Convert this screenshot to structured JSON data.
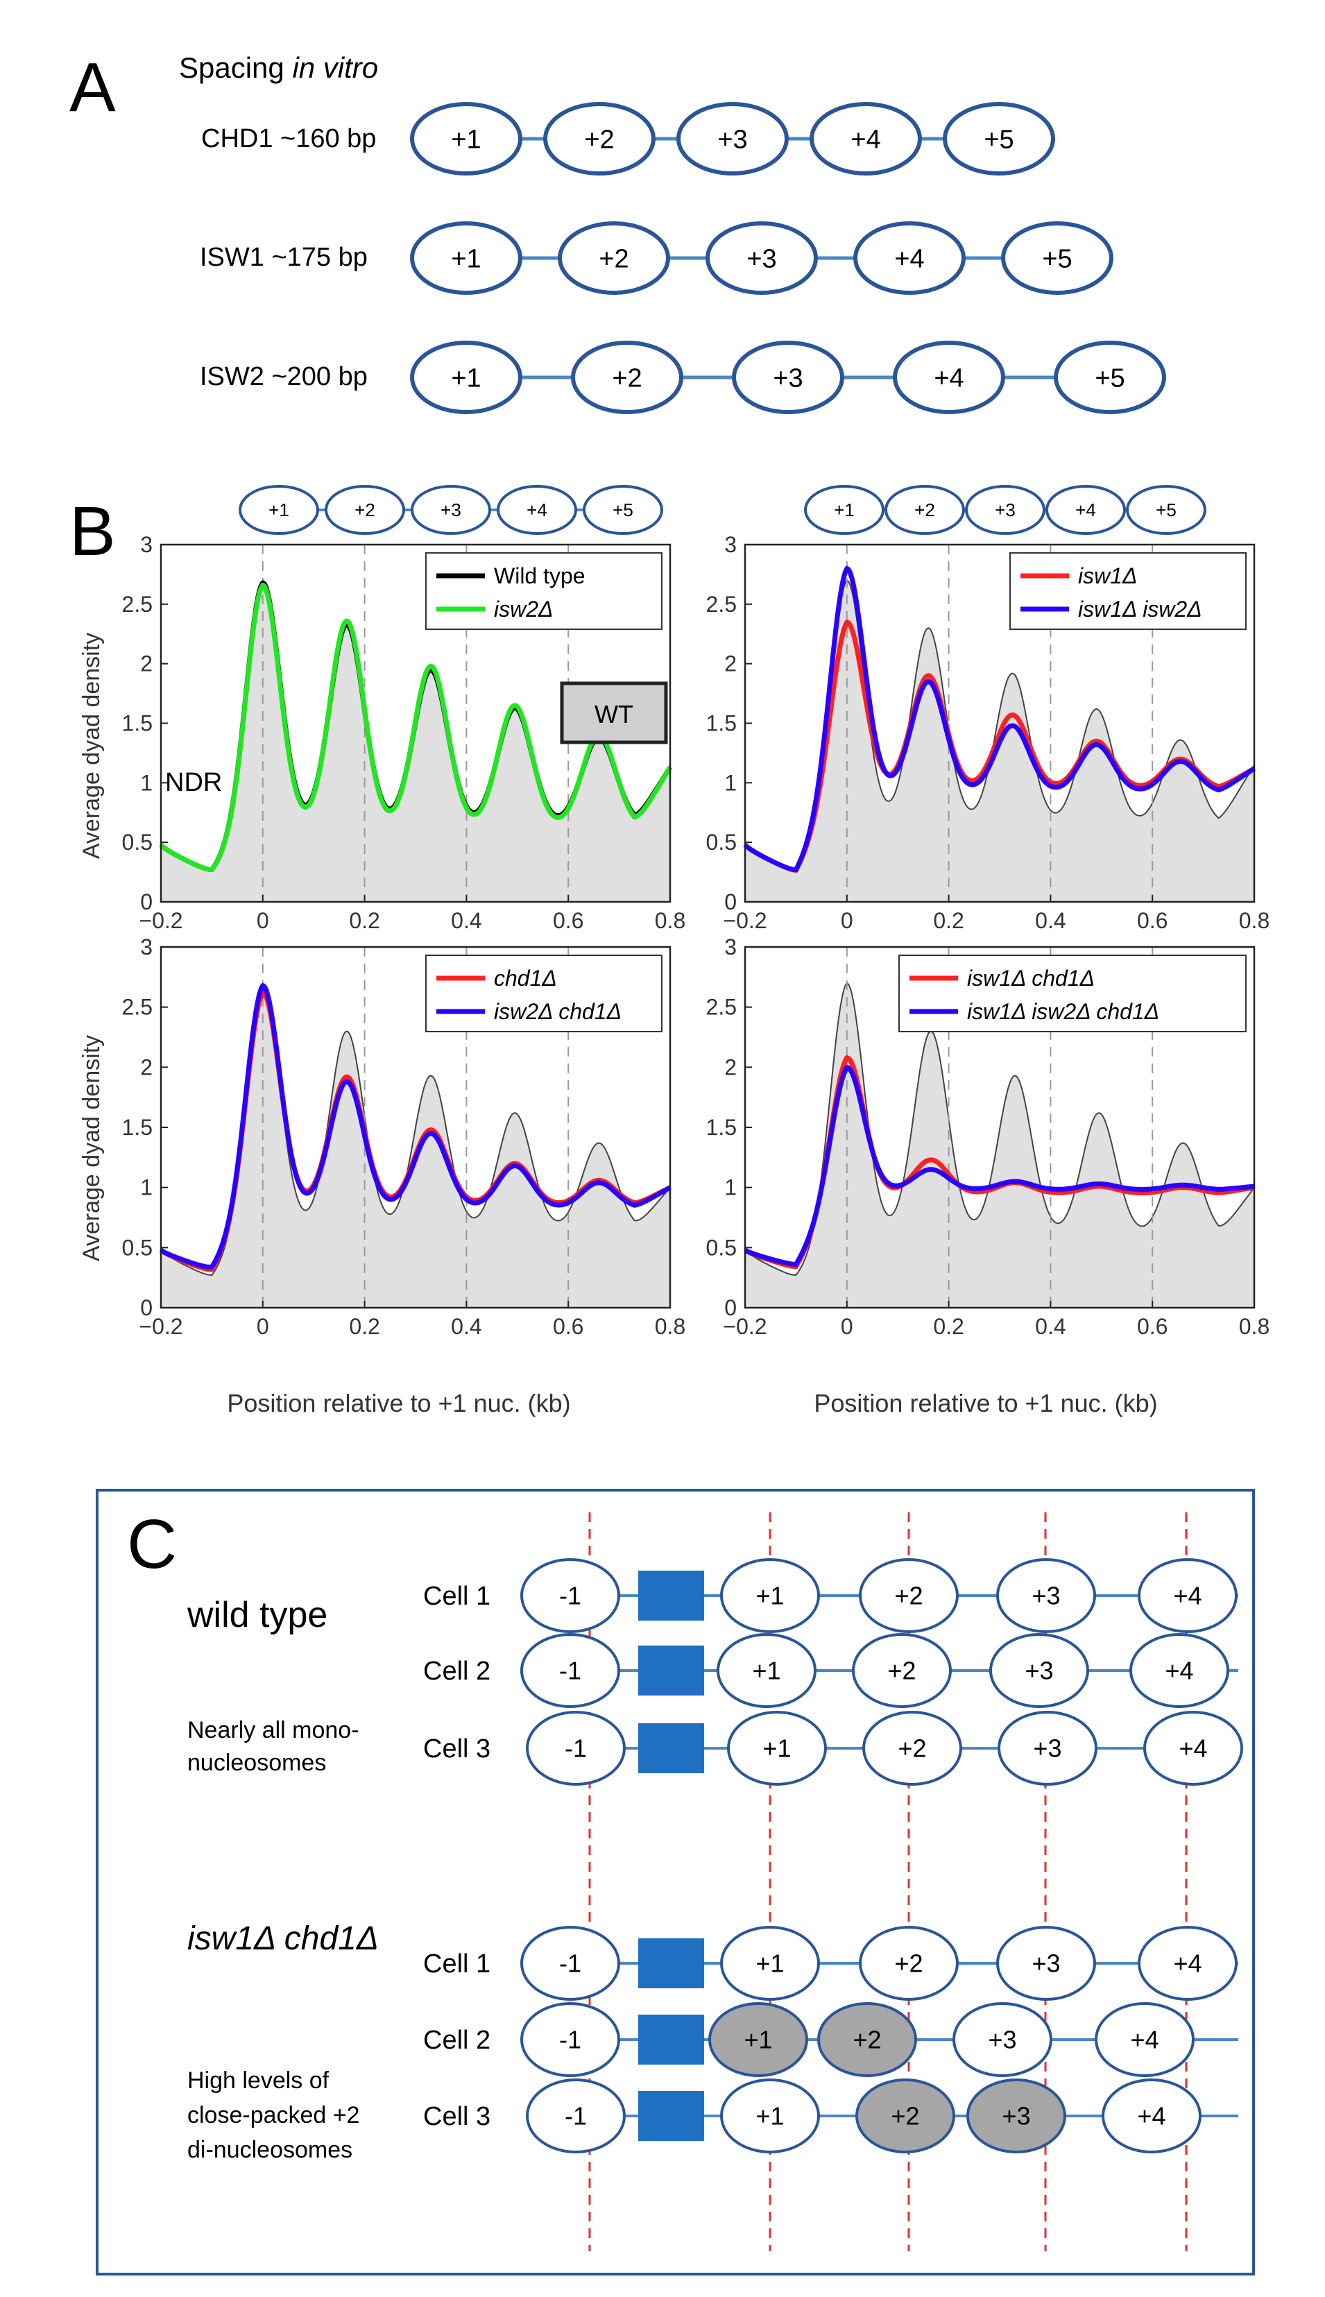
{
  "panels": {
    "A": {
      "letter": "A",
      "heading_prefix": "Spacing ",
      "heading_italic": "in vitro",
      "rows": [
        {
          "label": "CHD1 ~160 bp",
          "nucs": [
            "+1",
            "+2",
            "+3",
            "+4",
            "+5"
          ]
        },
        {
          "label": "ISW1 ~175 bp",
          "nucs": [
            "+1",
            "+2",
            "+3",
            "+4",
            "+5"
          ]
        },
        {
          "label": "ISW2 ~200 bp",
          "nucs": [
            "+1",
            "+2",
            "+3",
            "+4",
            "+5"
          ]
        }
      ]
    },
    "B": {
      "letter": "B",
      "header_nucs": [
        "+1",
        "+2",
        "+3",
        "+4",
        "+5"
      ],
      "ylabel": "Average dyad density",
      "xlabel": "Position relative to +1 nuc. (kb)",
      "ndr_label": "NDR",
      "wt_label": "WT",
      "xticks": [
        "−0.2",
        "0",
        "0.2",
        "0.4",
        "0.6",
        "0.8"
      ],
      "yticks": [
        "0",
        "0.5",
        "1",
        "1.5",
        "2",
        "2.5",
        "3"
      ],
      "plots": [
        {
          "legend": [
            "Wild type",
            "isw2Δ"
          ]
        },
        {
          "legend": [
            "isw1Δ",
            "isw1Δ isw2Δ"
          ]
        },
        {
          "legend": [
            "chd1Δ",
            "isw2Δ chd1Δ"
          ]
        },
        {
          "legend": [
            "isw1Δ chd1Δ",
            "isw1Δ isw2Δ chd1Δ"
          ]
        }
      ]
    },
    "C": {
      "letter": "C",
      "wt_title": "wild type",
      "wt_note": [
        "Nearly all mono-",
        "nucleosomes"
      ],
      "mut_title": "isw1Δ chd1Δ",
      "mut_note": [
        "High levels of",
        "close-packed +2",
        "di-nucleosomes"
      ],
      "cell_labels": [
        "Cell 1",
        "Cell 2",
        "Cell 3"
      ],
      "nuc_labels": [
        "-1",
        "+1",
        "+2",
        "+3",
        "+4"
      ]
    }
  },
  "colors": {
    "nucleosome_stroke": "#2a5599",
    "linker": "#4a86c8",
    "ndr_box": "#1f6fc5",
    "close_packed_fill": "#a6a6a6",
    "wild_type": "#000000",
    "isw2": "#22e622",
    "red_series": "#ff2020",
    "blue_series": "#2a00ff",
    "wt_fill": "#e0e0e0",
    "guide_line": "#e53030"
  },
  "chart_data": [
    {
      "type": "line",
      "title": "",
      "xlabel": "Position relative to +1 nuc. (kb)",
      "ylabel": "Average dyad density",
      "xlim": [
        -0.2,
        0.8
      ],
      "ylim": [
        0,
        3
      ],
      "peak_positions_kb": [
        0,
        0.165,
        0.33,
        0.495,
        0.66
      ],
      "series": [
        {
          "name": "WT (grey fill)",
          "baseline": 0.25,
          "plateau": 0.65,
          "trough_end": 0.65,
          "peaks": [
            2.7,
            2.35,
            1.97,
            1.65,
            1.4
          ],
          "end_value": 1.15
        },
        {
          "name": "Wild type",
          "baseline": 0.25,
          "plateau": 0.65,
          "trough_end": 0.65,
          "peaks": [
            2.68,
            2.33,
            1.95,
            1.63,
            1.38
          ],
          "end_value": 1.13
        },
        {
          "name": "isw2Δ",
          "baseline": 0.25,
          "plateau": 0.63,
          "trough_end": 0.63,
          "peaks": [
            2.66,
            2.36,
            1.98,
            1.65,
            1.4
          ],
          "end_value": 1.13
        }
      ]
    },
    {
      "type": "line",
      "xlabel": "Position relative to +1 nuc. (kb)",
      "ylabel": "Average dyad density",
      "xlim": [
        -0.2,
        0.8
      ],
      "ylim": [
        0,
        3
      ],
      "peak_positions_kb": [
        0,
        0.16,
        0.325,
        0.49,
        0.655
      ],
      "series": [
        {
          "name": "WT (grey fill)",
          "baseline": 0.25,
          "plateau": 0.65,
          "trough_end": 0.65,
          "peaks": [
            2.7,
            2.3,
            1.92,
            1.62,
            1.36
          ],
          "end_value": 1.15
        },
        {
          "name": "isw1Δ",
          "baseline": 0.25,
          "plateau": 0.95,
          "trough_end": 0.95,
          "peaks": [
            2.35,
            1.9,
            1.57,
            1.35,
            1.2
          ],
          "end_value": 1.12
        },
        {
          "name": "isw1Δ isw2Δ",
          "baseline": 0.25,
          "plateau": 0.92,
          "trough_end": 0.92,
          "peaks": [
            2.8,
            1.85,
            1.48,
            1.32,
            1.18
          ],
          "end_value": 1.12
        }
      ]
    },
    {
      "type": "line",
      "xlabel": "Position relative to +1 nuc. (kb)",
      "ylabel": "Average dyad density",
      "xlim": [
        -0.2,
        0.8
      ],
      "ylim": [
        0,
        3
      ],
      "peak_positions_kb": [
        0,
        0.165,
        0.33,
        0.495,
        0.66
      ],
      "series": [
        {
          "name": "WT (grey fill)",
          "baseline": 0.25,
          "plateau": 0.65,
          "trough_end": 0.65,
          "peaks": [
            2.65,
            2.3,
            1.93,
            1.62,
            1.37
          ],
          "end_value": 1.0
        },
        {
          "name": "chd1Δ",
          "baseline": 0.3,
          "plateau": 0.85,
          "trough_end": 0.85,
          "peaks": [
            2.62,
            1.92,
            1.48,
            1.2,
            1.06
          ],
          "end_value": 1.0
        },
        {
          "name": "isw2Δ chd1Δ",
          "baseline": 0.32,
          "plateau": 0.83,
          "trough_end": 0.83,
          "peaks": [
            2.68,
            1.88,
            1.45,
            1.18,
            1.04
          ],
          "end_value": 1.0
        }
      ]
    },
    {
      "type": "line",
      "xlabel": "Position relative to +1 nuc. (kb)",
      "ylabel": "Average dyad density",
      "xlim": [
        -0.2,
        0.8
      ],
      "ylim": [
        0,
        3
      ],
      "peak_positions_kb": [
        0,
        0.165,
        0.33,
        0.495,
        0.66
      ],
      "series": [
        {
          "name": "WT (grey fill)",
          "baseline": 0.25,
          "plateau": 0.6,
          "trough_end": 0.6,
          "peaks": [
            2.7,
            2.3,
            1.93,
            1.62,
            1.37
          ],
          "end_value": 1.0
        },
        {
          "name": "isw1Δ chd1Δ",
          "baseline": 0.33,
          "plateau": 0.95,
          "trough_end": 0.95,
          "peaks": [
            2.08,
            1.23,
            1.04,
            1.01,
            1.0
          ],
          "end_value": 1.0
        },
        {
          "name": "isw1Δ isw2Δ chd1Δ",
          "baseline": 0.35,
          "plateau": 0.98,
          "trough_end": 0.98,
          "peaks": [
            2.0,
            1.15,
            1.05,
            1.03,
            1.02
          ],
          "end_value": 1.01
        }
      ]
    }
  ]
}
